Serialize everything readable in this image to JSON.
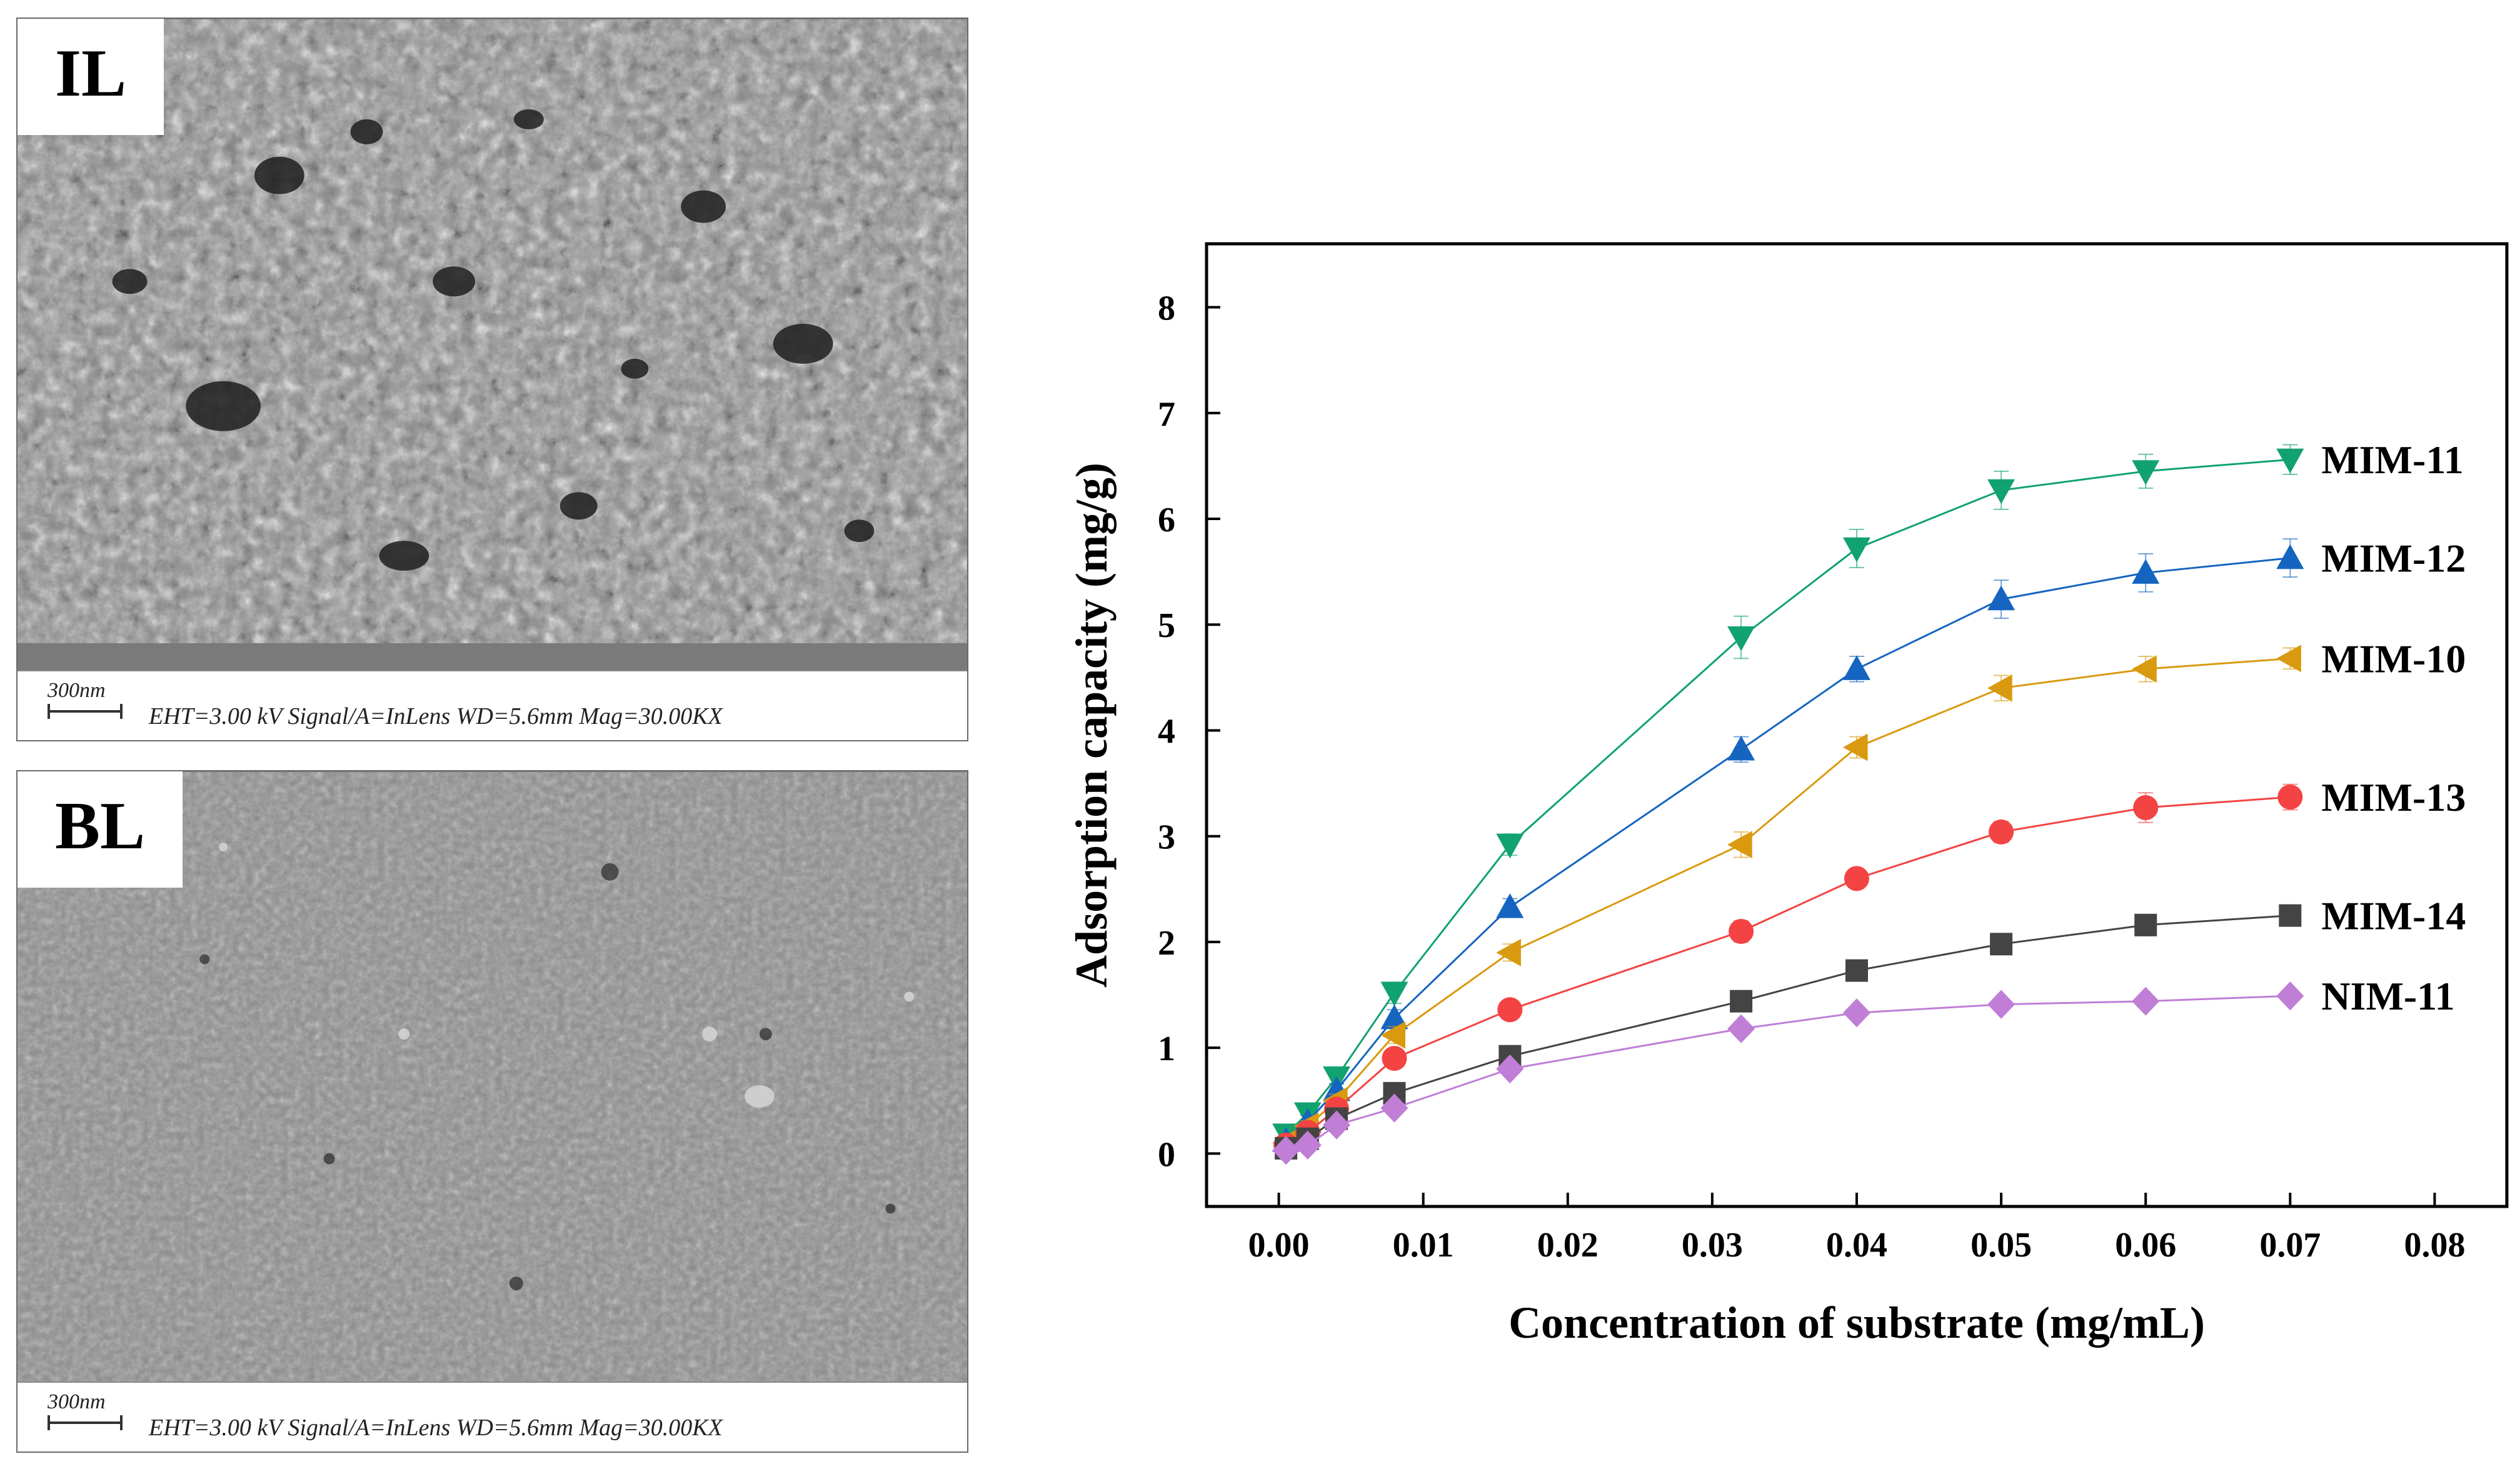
{
  "panels": [
    {
      "label": "IL",
      "scale": "300nm",
      "meta": "EHT=3.00 kV  Signal/A=InLens WD=5.6mm Mag=30.00KX"
    },
    {
      "label": "BL",
      "scale": "300nm",
      "meta": "EHT=3.00 kV  Signal/A=InLens WD=5.6mm Mag=30.00KX"
    }
  ],
  "chart_data": {
    "type": "line",
    "xlabel": "Concentration of substrate (mg/mL)",
    "ylabel": "Adsorption capacity (mg/g)",
    "xlim": [
      -0.005,
      0.085
    ],
    "ylim": [
      -0.5,
      8.6
    ],
    "xticks": [
      "0.00",
      "0.01",
      "0.02",
      "0.03",
      "0.04",
      "0.05",
      "0.06",
      "0.07",
      "0.08"
    ],
    "yticks": [
      "0",
      "1",
      "2",
      "3",
      "4",
      "5",
      "6",
      "7",
      "8"
    ],
    "x": [
      0.0005,
      0.002,
      0.004,
      0.008,
      0.016,
      0.032,
      0.04,
      0.05,
      0.06,
      0.07
    ],
    "legend": "inline labels at line ends",
    "series": [
      {
        "name": "MIM-11",
        "color": "#11a26f",
        "marker": "triangle-down",
        "values": [
          0.18,
          0.38,
          0.72,
          1.52,
          2.92,
          4.88,
          5.72,
          6.27,
          6.45,
          6.56
        ],
        "errors": [
          0.05,
          0.06,
          0.06,
          0.1,
          0.1,
          0.2,
          0.18,
          0.18,
          0.16,
          0.14
        ]
      },
      {
        "name": "MIM-12",
        "color": "#1565c0",
        "marker": "triangle-up",
        "values": [
          0.12,
          0.3,
          0.6,
          1.28,
          2.33,
          3.82,
          4.58,
          5.24,
          5.49,
          5.63
        ],
        "errors": [
          0.05,
          0.06,
          0.06,
          0.08,
          0.08,
          0.12,
          0.12,
          0.18,
          0.18,
          0.18
        ]
      },
      {
        "name": "MIM-10",
        "color": "#d99a0f",
        "marker": "triangle-left",
        "values": [
          0.1,
          0.26,
          0.5,
          1.12,
          1.9,
          2.92,
          3.84,
          4.4,
          4.58,
          4.68
        ],
        "errors": [
          0.05,
          0.05,
          0.06,
          0.08,
          0.08,
          0.12,
          0.1,
          0.12,
          0.12,
          0.1
        ]
      },
      {
        "name": "MIM-13",
        "color": "#f44343",
        "marker": "circle",
        "values": [
          0.08,
          0.2,
          0.42,
          0.9,
          1.36,
          2.1,
          2.6,
          3.04,
          3.27,
          3.37
        ],
        "errors": [
          0.04,
          0.05,
          0.05,
          0.06,
          0.06,
          0.1,
          0.08,
          0.1,
          0.14,
          0.12
        ]
      },
      {
        "name": "MIM-14",
        "color": "#444444",
        "marker": "square",
        "values": [
          0.05,
          0.14,
          0.33,
          0.57,
          0.92,
          1.44,
          1.73,
          1.98,
          2.16,
          2.25
        ],
        "errors": [
          0.03,
          0.04,
          0.04,
          0.05,
          0.05,
          0.07,
          0.06,
          0.07,
          0.1,
          0.08
        ]
      },
      {
        "name": "NIM-11",
        "color": "#c07ed6",
        "marker": "diamond",
        "values": [
          0.03,
          0.08,
          0.27,
          0.43,
          0.8,
          1.18,
          1.33,
          1.41,
          1.44,
          1.49
        ],
        "errors": [
          0.03,
          0.03,
          0.04,
          0.05,
          0.05,
          0.06,
          0.05,
          0.05,
          0.05,
          0.05
        ]
      }
    ]
  }
}
